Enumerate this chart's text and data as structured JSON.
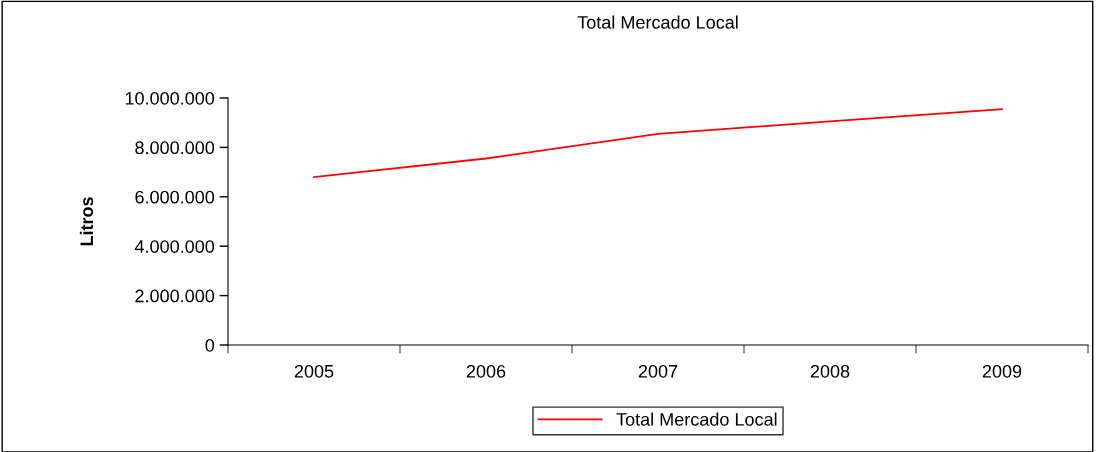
{
  "chart_data": {
    "type": "line",
    "title": "Total Mercado Local",
    "ylabel": "Litros",
    "categories": [
      "2005",
      "2006",
      "2007",
      "2008",
      "2009"
    ],
    "series": [
      {
        "name": "Total Mercado Local",
        "color": "#ff0000",
        "values": [
          6800000,
          7550000,
          8550000,
          9050000,
          9550000
        ]
      }
    ],
    "ylim": [
      0,
      10000000
    ],
    "yticks": [
      {
        "value": 0,
        "label": "0"
      },
      {
        "value": 2000000,
        "label": "2.000.000"
      },
      {
        "value": 4000000,
        "label": "4.000.000"
      },
      {
        "value": 6000000,
        "label": "6.000.000"
      },
      {
        "value": 8000000,
        "label": "8.000.000"
      },
      {
        "value": 10000000,
        "label": "10.000.000"
      }
    ],
    "grid": false,
    "legend": "bottom",
    "marker": "none",
    "line_style": "solid"
  }
}
